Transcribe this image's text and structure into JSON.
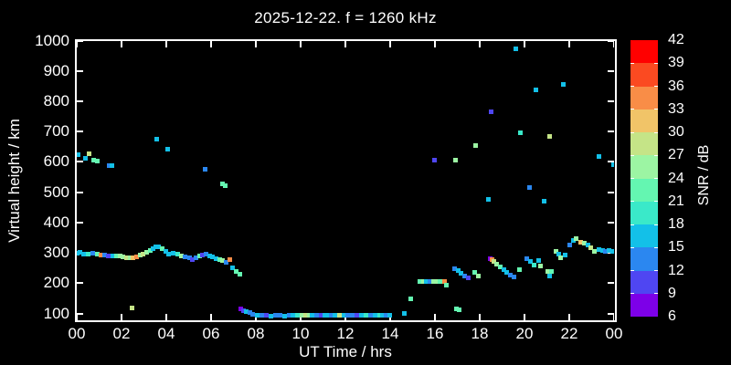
{
  "title": "2025-12-22. f = 1260 kHz",
  "x_axis": {
    "label": "UT Time / hrs",
    "tick_labels": [
      "00",
      "02",
      "04",
      "06",
      "08",
      "10",
      "12",
      "14",
      "16",
      "18",
      "20",
      "22",
      "00"
    ],
    "range_hours": [
      0,
      24
    ]
  },
  "y_axis": {
    "label": "Virtual height / km",
    "tick_labels": [
      "1000",
      "900",
      "800",
      "700",
      "600",
      "500",
      "400",
      "300",
      "200",
      "100"
    ],
    "tick_values_km": [
      1000,
      900,
      800,
      700,
      600,
      500,
      400,
      300,
      200,
      100
    ],
    "range_km": [
      76,
      1002
    ]
  },
  "colorbar": {
    "label": "SNR / dB",
    "tick_labels": [
      "42",
      "39",
      "36",
      "33",
      "30",
      "27",
      "24",
      "21",
      "18",
      "15",
      "12",
      "9",
      "6"
    ],
    "min": 6,
    "max": 42,
    "step": 3,
    "band_colors_bottom_to_top": [
      "#7d00e8",
      "#4f46f2",
      "#2b87f0",
      "#13c0e8",
      "#3ae9c9",
      "#64f6b1",
      "#9cf5a3",
      "#c5e487",
      "#f1c468",
      "#f98d47",
      "#fb4a21",
      "#ff0000"
    ]
  },
  "chart_data": {
    "type": "scatter",
    "title": "2025-12-22. f = 1260 kHz",
    "xlabel": "UT Time / hrs",
    "ylabel": "Virtual height / km",
    "colorbar_label": "SNR / dB",
    "xlim_hours": [
      0,
      24
    ],
    "ylim_km": [
      76,
      1002
    ],
    "snr_scale_db": [
      6,
      42
    ],
    "background": "#000000",
    "point_format": "[ut_time_hours, virtual_height_km, snr_db]",
    "points": [
      [
        0.0,
        300,
        16
      ],
      [
        0.12,
        302,
        16
      ],
      [
        0.3,
        296,
        16
      ],
      [
        0.5,
        298,
        19
      ],
      [
        0.7,
        300,
        13
      ],
      [
        0.88,
        296,
        22
      ],
      [
        1.05,
        294,
        34
      ],
      [
        1.22,
        294,
        13
      ],
      [
        1.4,
        291,
        10
      ],
      [
        1.58,
        290,
        16
      ],
      [
        1.75,
        292,
        22
      ],
      [
        1.9,
        290,
        25
      ],
      [
        2.05,
        288,
        25
      ],
      [
        2.2,
        286,
        28
      ],
      [
        2.35,
        284,
        25
      ],
      [
        2.5,
        286,
        31
      ],
      [
        2.65,
        289,
        34
      ],
      [
        2.8,
        293,
        25
      ],
      [
        2.95,
        297,
        28
      ],
      [
        3.1,
        303,
        25
      ],
      [
        3.25,
        309,
        22
      ],
      [
        3.4,
        315,
        16
      ],
      [
        3.52,
        321,
        16
      ],
      [
        3.65,
        322,
        16
      ],
      [
        3.8,
        316,
        22
      ],
      [
        3.95,
        306,
        16
      ],
      [
        4.1,
        298,
        16
      ],
      [
        4.3,
        300,
        16
      ],
      [
        4.48,
        298,
        19
      ],
      [
        4.65,
        292,
        25
      ],
      [
        4.82,
        288,
        13
      ],
      [
        5.0,
        284,
        13
      ],
      [
        5.15,
        280,
        10
      ],
      [
        5.3,
        284,
        13
      ],
      [
        5.45,
        290,
        22
      ],
      [
        5.6,
        294,
        10
      ],
      [
        5.75,
        296,
        13
      ],
      [
        5.9,
        291,
        16
      ],
      [
        6.05,
        287,
        16
      ],
      [
        6.2,
        283,
        16
      ],
      [
        6.35,
        279,
        22
      ],
      [
        6.5,
        275,
        25
      ],
      [
        6.65,
        271,
        13
      ],
      [
        6.8,
        280,
        34
      ],
      [
        6.95,
        252,
        16
      ],
      [
        7.1,
        240,
        22
      ],
      [
        7.25,
        232,
        22
      ],
      [
        0.05,
        625,
        16
      ],
      [
        0.35,
        612,
        16
      ],
      [
        0.55,
        628,
        28
      ],
      [
        0.72,
        608,
        22
      ],
      [
        0.9,
        605,
        22
      ],
      [
        1.42,
        590,
        13
      ],
      [
        1.55,
        590,
        16
      ],
      [
        2.45,
        120,
        28
      ],
      [
        3.55,
        676,
        16
      ],
      [
        4.05,
        642,
        16
      ],
      [
        5.7,
        576,
        13
      ],
      [
        6.5,
        528,
        22
      ],
      [
        6.62,
        522,
        22
      ],
      [
        7.3,
        118,
        7
      ],
      [
        7.42,
        112,
        10
      ],
      [
        7.55,
        108,
        16
      ],
      [
        7.7,
        104,
        13
      ],
      [
        7.85,
        100,
        13
      ],
      [
        8.05,
        96,
        16
      ],
      [
        8.25,
        94,
        13
      ],
      [
        8.45,
        95,
        10
      ],
      [
        8.65,
        93,
        16
      ],
      [
        8.85,
        94,
        13
      ],
      [
        9.05,
        95,
        13
      ],
      [
        9.25,
        93,
        16
      ],
      [
        9.45,
        94,
        13
      ],
      [
        9.65,
        95,
        16
      ],
      [
        9.85,
        94,
        19
      ],
      [
        10.05,
        95,
        25
      ],
      [
        10.2,
        96,
        28
      ],
      [
        10.35,
        95,
        25
      ],
      [
        10.5,
        94,
        16
      ],
      [
        10.7,
        95,
        13
      ],
      [
        10.9,
        94,
        10
      ],
      [
        11.05,
        95,
        16
      ],
      [
        11.2,
        94,
        16
      ],
      [
        11.35,
        95,
        13
      ],
      [
        11.5,
        94,
        16
      ],
      [
        11.7,
        95,
        28
      ],
      [
        11.9,
        94,
        16
      ],
      [
        12.1,
        95,
        13
      ],
      [
        12.3,
        94,
        13
      ],
      [
        12.5,
        95,
        10
      ],
      [
        12.7,
        94,
        16
      ],
      [
        12.9,
        95,
        19
      ],
      [
        13.1,
        94,
        13
      ],
      [
        13.3,
        95,
        16
      ],
      [
        13.5,
        94,
        19
      ],
      [
        13.65,
        95,
        16
      ],
      [
        13.8,
        94,
        13
      ],
      [
        13.95,
        95,
        16
      ],
      [
        14.6,
        101,
        16
      ],
      [
        14.9,
        150,
        22
      ],
      [
        15.3,
        208,
        22
      ],
      [
        15.45,
        207,
        25
      ],
      [
        15.6,
        208,
        16
      ],
      [
        15.75,
        207,
        13
      ],
      [
        15.9,
        208,
        25
      ],
      [
        16.05,
        207,
        25
      ],
      [
        16.2,
        206,
        22
      ],
      [
        16.4,
        207,
        34
      ],
      [
        16.5,
        196,
        22
      ],
      [
        16.85,
        250,
        13
      ],
      [
        16.95,
        118,
        22
      ],
      [
        17.05,
        115,
        22
      ],
      [
        17.0,
        242,
        16
      ],
      [
        17.15,
        234,
        16
      ],
      [
        17.3,
        226,
        13
      ],
      [
        17.45,
        220,
        10
      ],
      [
        17.75,
        236,
        22
      ],
      [
        17.9,
        226,
        25
      ],
      [
        18.45,
        281,
        7
      ],
      [
        18.52,
        278,
        34
      ],
      [
        18.62,
        272,
        28
      ],
      [
        18.75,
        264,
        25
      ],
      [
        18.9,
        255,
        22
      ],
      [
        19.05,
        246,
        16
      ],
      [
        19.2,
        238,
        16
      ],
      [
        19.35,
        228,
        13
      ],
      [
        19.5,
        222,
        13
      ],
      [
        19.75,
        247,
        22
      ],
      [
        20.1,
        282,
        13
      ],
      [
        20.25,
        273,
        16
      ],
      [
        20.4,
        262,
        19
      ],
      [
        20.6,
        276,
        16
      ],
      [
        20.7,
        259,
        25
      ],
      [
        21.0,
        241,
        25
      ],
      [
        21.1,
        226,
        16
      ],
      [
        21.2,
        241,
        22
      ],
      [
        21.4,
        306,
        25
      ],
      [
        21.5,
        297,
        16
      ],
      [
        21.6,
        286,
        25
      ],
      [
        21.8,
        293,
        16
      ],
      [
        22.0,
        326,
        13
      ],
      [
        22.15,
        341,
        16
      ],
      [
        22.3,
        349,
        25
      ],
      [
        22.5,
        336,
        31
      ],
      [
        22.65,
        333,
        25
      ],
      [
        22.8,
        326,
        16
      ],
      [
        22.95,
        319,
        28
      ],
      [
        23.1,
        306,
        25
      ],
      [
        23.3,
        313,
        16
      ],
      [
        23.45,
        308,
        16
      ],
      [
        23.6,
        306,
        13
      ],
      [
        23.75,
        308,
        16
      ],
      [
        23.9,
        305,
        16
      ],
      [
        19.6,
        975,
        16
      ],
      [
        20.5,
        840,
        16
      ],
      [
        21.7,
        858,
        16
      ],
      [
        18.5,
        768,
        10
      ],
      [
        19.8,
        698,
        19
      ],
      [
        21.1,
        684,
        28
      ],
      [
        17.8,
        654,
        25
      ],
      [
        15.95,
        608,
        10
      ],
      [
        16.9,
        608,
        25
      ],
      [
        23.3,
        620,
        16
      ],
      [
        20.2,
        516,
        13
      ],
      [
        18.35,
        478,
        16
      ],
      [
        20.85,
        472,
        16
      ],
      [
        23.95,
        592,
        16
      ]
    ]
  }
}
